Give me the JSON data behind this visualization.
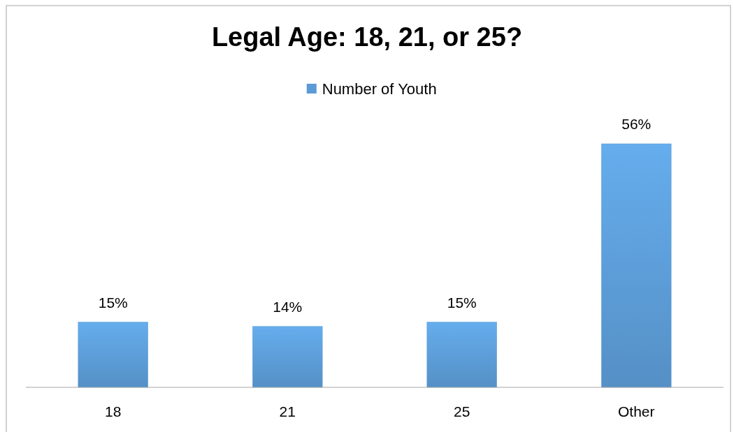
{
  "chart_data": {
    "type": "bar",
    "title": "Legal Age: 18, 21, or 25?",
    "categories": [
      "18",
      "21",
      "25",
      "Other"
    ],
    "series": [
      {
        "name": "Number of Youth",
        "color": "#5b9bd5",
        "values": [
          15,
          14,
          15,
          56
        ],
        "value_labels": [
          "15%",
          "14%",
          "15%",
          "56%"
        ]
      }
    ],
    "tick_labels": "x",
    "legend": "top"
  }
}
